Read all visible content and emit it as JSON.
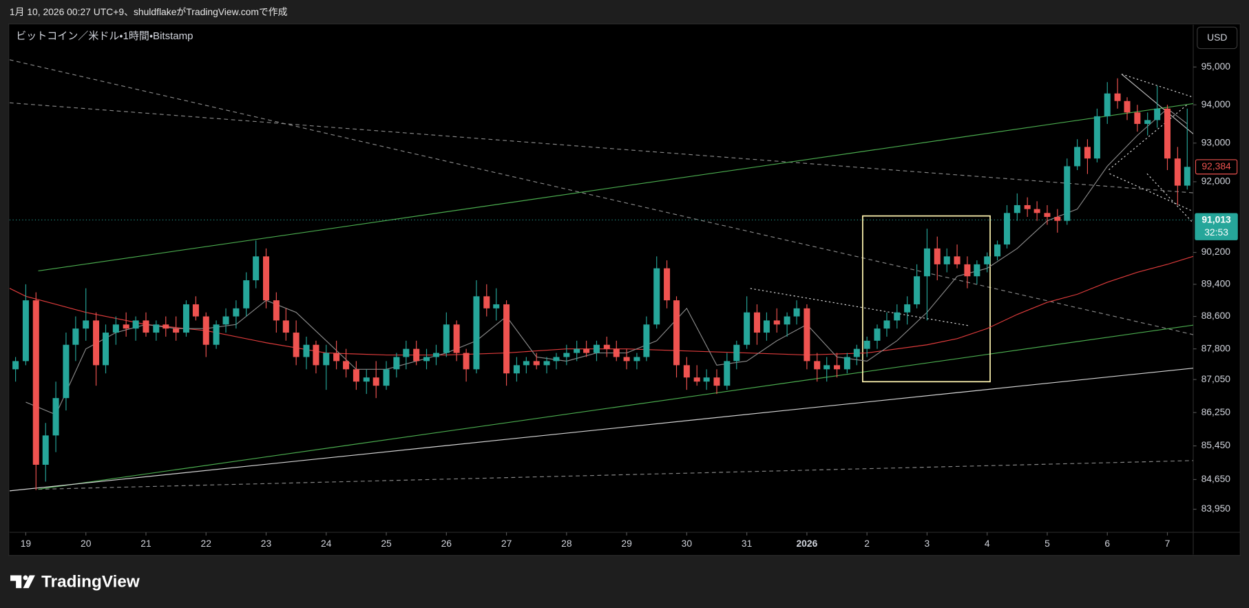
{
  "header": {
    "caption": "1月 10, 2026 00:27 UTC+9、shuldflakeがTradingView.comで作成"
  },
  "chart_data": {
    "type": "candlestick",
    "title": "ビットコイン／米ドル・1時間・Bitstamp",
    "currency": "USD",
    "log_scale": true,
    "grid": false,
    "up_color": "#26a69a",
    "down_color": "#ef5350",
    "xlim": [
      -0.27,
      19.43
    ],
    "xticks": [
      {
        "value": 0,
        "label": "19"
      },
      {
        "value": 1,
        "label": "20"
      },
      {
        "value": 2,
        "label": "21"
      },
      {
        "value": 3,
        "label": "22"
      },
      {
        "value": 4,
        "label": "23"
      },
      {
        "value": 5,
        "label": "24"
      },
      {
        "value": 6,
        "label": "25"
      },
      {
        "value": 7,
        "label": "26"
      },
      {
        "value": 8,
        "label": "27"
      },
      {
        "value": 9,
        "label": "28"
      },
      {
        "value": 10,
        "label": "29"
      },
      {
        "value": 11,
        "label": "30"
      },
      {
        "value": 12,
        "label": "31"
      },
      {
        "value": 13,
        "label": "2026"
      },
      {
        "value": 14,
        "label": "2"
      },
      {
        "value": 15,
        "label": "3"
      },
      {
        "value": 16,
        "label": "4"
      },
      {
        "value": 17,
        "label": "5"
      },
      {
        "value": 18,
        "label": "6"
      },
      {
        "value": 19,
        "label": "7"
      }
    ],
    "ylim": [
      83410,
      96130
    ],
    "yticks": [
      {
        "value": 95000,
        "label": "95,000"
      },
      {
        "value": 94000,
        "label": "94,000"
      },
      {
        "value": 93000,
        "label": "93,000"
      },
      {
        "value": 92000,
        "label": "92,000"
      },
      {
        "value": 90200,
        "label": "90,200"
      },
      {
        "value": 89400,
        "label": "89,400"
      },
      {
        "value": 88600,
        "label": "88,600"
      },
      {
        "value": 87800,
        "label": "87,800"
      },
      {
        "value": 87050,
        "label": "87,050"
      },
      {
        "value": 86250,
        "label": "86,250"
      },
      {
        "value": 85450,
        "label": "85,450"
      },
      {
        "value": 84650,
        "label": "84,650"
      },
      {
        "value": 83950,
        "label": "83,950"
      }
    ],
    "x": [
      -0.17,
      0,
      0.17,
      0.33,
      0.5,
      0.67,
      0.83,
      1,
      1.17,
      1.33,
      1.5,
      1.67,
      1.83,
      2,
      2.17,
      2.33,
      2.5,
      2.67,
      2.83,
      3,
      3.17,
      3.33,
      3.5,
      3.67,
      3.83,
      4,
      4.17,
      4.33,
      4.5,
      4.67,
      4.83,
      5,
      5.17,
      5.33,
      5.5,
      5.67,
      5.83,
      6,
      6.17,
      6.33,
      6.5,
      6.67,
      6.83,
      7,
      7.17,
      7.33,
      7.5,
      7.67,
      7.83,
      8,
      8.17,
      8.33,
      8.5,
      8.67,
      8.83,
      9,
      9.17,
      9.33,
      9.5,
      9.67,
      9.83,
      10,
      10.17,
      10.33,
      10.5,
      10.67,
      10.83,
      11,
      11.17,
      11.33,
      11.5,
      11.67,
      11.83,
      12,
      12.17,
      12.33,
      12.5,
      12.67,
      12.83,
      13,
      13.17,
      13.33,
      13.5,
      13.67,
      13.83,
      14,
      14.17,
      14.33,
      14.5,
      14.67,
      14.83,
      15,
      15.17,
      15.33,
      15.5,
      15.67,
      15.83,
      16,
      16.17,
      16.33,
      16.5,
      16.67,
      16.83,
      17,
      17.17,
      17.33,
      17.5,
      17.67,
      17.83,
      18,
      18.17,
      18.33,
      18.5,
      18.67,
      18.83,
      19,
      19.17,
      19.33
    ],
    "open": [
      87300,
      87500,
      89000,
      85000,
      85700,
      86600,
      87900,
      88300,
      88500,
      87400,
      88200,
      88400,
      88300,
      88500,
      88200,
      88400,
      88300,
      88200,
      88900,
      88600,
      87900,
      88400,
      88600,
      88800,
      89500,
      90100,
      89000,
      88500,
      88200,
      87600,
      87900,
      87400,
      87700,
      87500,
      87300,
      87000,
      87100,
      86900,
      87300,
      87600,
      87800,
      87500,
      87600,
      87700,
      88400,
      87700,
      87300,
      89100,
      88800,
      88900,
      87200,
      87400,
      87500,
      87400,
      87500,
      87600,
      87700,
      87800,
      87700,
      87900,
      87800,
      87600,
      87500,
      87600,
      88400,
      89800,
      89000,
      87400,
      87100,
      87000,
      87100,
      86900,
      87500,
      87900,
      88700,
      88200,
      88500,
      88400,
      88600,
      88800,
      87500,
      87300,
      87400,
      87300,
      87600,
      87800,
      88000,
      88300,
      88500,
      88700,
      88900,
      89600,
      90300,
      89900,
      90100,
      89900,
      89600,
      89900,
      90100,
      90400,
      91200,
      91400,
      91300,
      91200,
      91100,
      91000,
      92400,
      92900,
      92600,
      93700,
      94300,
      94100,
      93800,
      93500,
      93600,
      93900,
      92600,
      91900
    ],
    "high": [
      87600,
      89400,
      89200,
      86000,
      87000,
      88200,
      88600,
      89300,
      88700,
      88400,
      88600,
      88700,
      88600,
      88700,
      88500,
      88600,
      88600,
      89000,
      89100,
      88700,
      88500,
      88800,
      89000,
      89700,
      90500,
      90300,
      89200,
      88800,
      88500,
      88100,
      88000,
      87900,
      88000,
      87800,
      87500,
      87300,
      87500,
      87500,
      87700,
      88000,
      88000,
      87800,
      87900,
      88700,
      88500,
      87800,
      89500,
      89400,
      89300,
      89000,
      87600,
      87600,
      87700,
      87600,
      87700,
      87900,
      88000,
      88000,
      88000,
      88100,
      88000,
      87800,
      87700,
      88600,
      90100,
      90000,
      89100,
      87600,
      87400,
      87300,
      87300,
      87700,
      88000,
      89100,
      88900,
      88700,
      88800,
      88700,
      89000,
      88900,
      87700,
      87600,
      87700,
      87700,
      87900,
      88100,
      88400,
      88700,
      88900,
      89100,
      89900,
      90800,
      90600,
      90300,
      90400,
      90100,
      90000,
      90200,
      90500,
      91400,
      91700,
      91600,
      91500,
      91400,
      91300,
      92600,
      93100,
      93100,
      93900,
      94600,
      94700,
      94200,
      94000,
      93800,
      94500,
      94000,
      92900,
      93900
    ],
    "low": [
      87000,
      87400,
      84400,
      84600,
      85300,
      86300,
      87500,
      88000,
      86900,
      87200,
      87900,
      88100,
      88000,
      88100,
      88000,
      88100,
      88000,
      88100,
      88500,
      87600,
      87800,
      88200,
      88300,
      88600,
      89300,
      88800,
      88200,
      88000,
      87400,
      87300,
      87200,
      86800,
      87300,
      87100,
      86800,
      86700,
      86600,
      86800,
      87100,
      87300,
      87400,
      87300,
      87400,
      87600,
      87500,
      87000,
      87200,
      88600,
      88500,
      86900,
      87000,
      87200,
      87300,
      87200,
      87300,
      87400,
      87500,
      87600,
      87500,
      87600,
      87500,
      87300,
      87300,
      87500,
      88300,
      88800,
      87100,
      86800,
      86900,
      86800,
      86700,
      86800,
      87300,
      87800,
      87900,
      88000,
      88200,
      88100,
      88400,
      87300,
      87000,
      87000,
      87100,
      87200,
      87400,
      87600,
      87800,
      88100,
      88300,
      88400,
      88800,
      88500,
      89500,
      89700,
      89800,
      89300,
      89400,
      89700,
      90000,
      90300,
      91000,
      91100,
      91000,
      90900,
      90700,
      90900,
      92300,
      92200,
      92500,
      93500,
      93900,
      93600,
      93300,
      93200,
      93400,
      92300,
      91400,
      91800
    ],
    "close": [
      87500,
      89000,
      85000,
      85700,
      86600,
      87900,
      88300,
      88500,
      87400,
      88200,
      88400,
      88300,
      88500,
      88200,
      88400,
      88300,
      88200,
      88900,
      88600,
      87900,
      88400,
      88600,
      88800,
      89500,
      90100,
      89000,
      88500,
      88200,
      87600,
      87900,
      87400,
      87700,
      87500,
      87300,
      87000,
      87100,
      86900,
      87300,
      87600,
      87800,
      87500,
      87600,
      87700,
      88400,
      87700,
      87300,
      89100,
      88800,
      88900,
      87200,
      87400,
      87500,
      87400,
      87500,
      87600,
      87700,
      87800,
      87700,
      87900,
      87800,
      87600,
      87500,
      87600,
      88400,
      89800,
      89000,
      87400,
      87100,
      87000,
      87100,
      86900,
      87500,
      87900,
      88700,
      88200,
      88500,
      88400,
      88600,
      88800,
      87500,
      87300,
      87400,
      87300,
      87600,
      87800,
      88000,
      88300,
      88500,
      88700,
      88900,
      89600,
      90300,
      89900,
      90100,
      89900,
      89600,
      89900,
      90100,
      90400,
      91200,
      91400,
      91300,
      91200,
      91100,
      91000,
      92400,
      92900,
      92600,
      93700,
      94300,
      94100,
      93800,
      93500,
      93600,
      93900,
      92600,
      91900,
      92384
    ],
    "moving_averages": [
      {
        "color": "#e03c3c",
        "x": [
          -0.27,
          0,
          0.5,
          1,
          1.5,
          2,
          3,
          4,
          5,
          6,
          7,
          8,
          9,
          10,
          11,
          12,
          13,
          14,
          15,
          15.5,
          16,
          16.5,
          17,
          17.5,
          18,
          18.5,
          19,
          19.43
        ],
        "values": [
          89300,
          89100,
          88900,
          88700,
          88550,
          88400,
          88250,
          87950,
          87700,
          87650,
          87650,
          87700,
          87800,
          87800,
          87750,
          87700,
          87650,
          87700,
          87900,
          88050,
          88300,
          88650,
          88950,
          89150,
          89450,
          89700,
          89900,
          90100
        ]
      },
      {
        "color": "#8a8a8a",
        "x": [
          0,
          0.5,
          1,
          1.5,
          2,
          2.5,
          3,
          3.5,
          4,
          4.5,
          5,
          5.5,
          6,
          6.5,
          7,
          7.5,
          8,
          8.5,
          9,
          9.5,
          10,
          10.5,
          11,
          11.5,
          12,
          12.5,
          13,
          13.5,
          14,
          14.5,
          15,
          15.5,
          16,
          16.5,
          17,
          17.5,
          18,
          18.5,
          19,
          19.33
        ],
        "values": [
          86500,
          86200,
          87800,
          88200,
          88400,
          88300,
          88300,
          88400,
          89000,
          88700,
          88000,
          87300,
          87300,
          87500,
          87700,
          88000,
          88600,
          87600,
          87500,
          87700,
          87700,
          88000,
          88800,
          87400,
          87500,
          88000,
          88400,
          87600,
          87500,
          88000,
          88700,
          89600,
          89800,
          90300,
          91000,
          91300,
          92400,
          93200,
          93900,
          93500
        ]
      }
    ],
    "last_price": {
      "value": 92384,
      "label": "92,384",
      "color": "#ef5350"
    },
    "live_price": {
      "value": 91013,
      "label": "91,013",
      "countdown": "32:53",
      "color": "#26a69a"
    }
  },
  "footer": {
    "brand": "TradingView"
  }
}
